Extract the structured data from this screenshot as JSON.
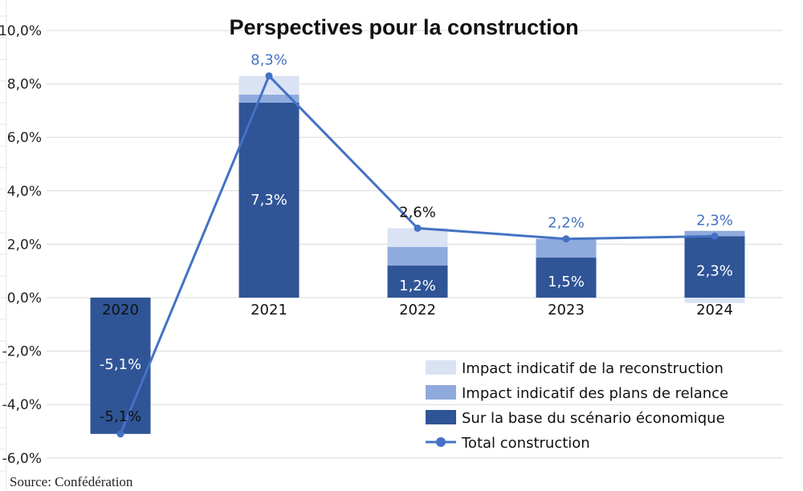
{
  "chart_data": {
    "type": "bar",
    "stacked": true,
    "title": "Perspectives pour la construction",
    "categories": [
      "2020",
      "2021",
      "2022",
      "2023",
      "2024"
    ],
    "ylim": [
      -6,
      10
    ],
    "yticks": [
      -6,
      -4,
      -2,
      0,
      2,
      4,
      6,
      8,
      10
    ],
    "ytick_labels": [
      "-6,0%",
      "-4,0%",
      "-2,0%",
      "0,0%",
      "2,0%",
      "4,0%",
      "6,0%",
      "8,0%",
      "10,0%"
    ],
    "grid": true,
    "legend_position": "bottom-right",
    "series": [
      {
        "name": "Sur la base du scénario économique",
        "kind": "bar",
        "color": "#2f5597",
        "values": [
          -5.1,
          7.3,
          1.2,
          1.5,
          2.3
        ],
        "labels": [
          "-5,1%",
          "7,3%",
          "1,2%",
          "1,5%",
          "2,3%"
        ]
      },
      {
        "name": "Impact indicatif des plans de relance",
        "kind": "bar",
        "color": "#8faadc",
        "values": [
          0,
          0.3,
          0.7,
          0.7,
          0.2
        ]
      },
      {
        "name": "Impact indicatif de la reconstruction",
        "kind": "bar",
        "color": "#dae3f3",
        "values": [
          0,
          0.7,
          0.7,
          0,
          -0.2
        ]
      },
      {
        "name": "Total construction",
        "kind": "line",
        "color": "#4472c4",
        "values": [
          -5.1,
          8.3,
          2.6,
          2.2,
          2.3
        ],
        "labels": [
          "-5,1%",
          "8,3%",
          "2,6%",
          "2,2%",
          "2,3%"
        ]
      }
    ]
  },
  "source": "Source: Confédération"
}
